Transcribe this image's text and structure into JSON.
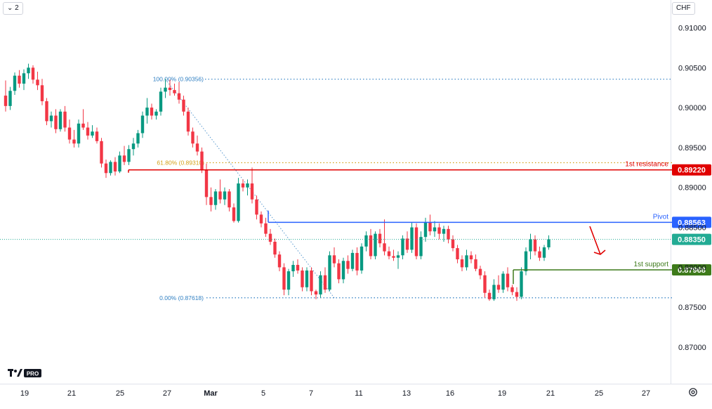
{
  "toolbar": {
    "interval_label": "2",
    "currency_label": "CHF"
  },
  "branding": {
    "logo_text": "TV PRO"
  },
  "colors": {
    "up": "#089981",
    "down": "#f23645",
    "resistance": "#e00000",
    "pivot": "#2962ff",
    "support": "#3d7a1a",
    "fib": "#2f7fc2",
    "fib618": "#d4a017",
    "last": "#22ab94"
  },
  "chart_data": {
    "type": "candlestick",
    "title": "",
    "y_axis": {
      "range": [
        0.8655,
        0.9135
      ],
      "ticks": [
        "0.91000",
        "0.90500",
        "0.90000",
        "0.89500",
        "0.89000",
        "0.88500",
        "0.88000",
        "0.87500",
        "0.87000"
      ]
    },
    "x_axis": {
      "labels": [
        "19",
        "21",
        "25",
        "27",
        "Mar",
        "5",
        "7",
        "11",
        "13",
        "16",
        "19",
        "21",
        "25",
        "27"
      ]
    },
    "levels": [
      {
        "id": "resistance",
        "label": "1st resistance",
        "value": 0.8922,
        "value_text": "0.89220"
      },
      {
        "id": "pivot",
        "label": "Pivot",
        "value": 0.88563,
        "value_text": "0.88563"
      },
      {
        "id": "support",
        "label": "1st support",
        "value": 0.87968,
        "value_text": "0.87968"
      }
    ],
    "last_price": {
      "value": 0.8835,
      "value_text": "0.88350"
    },
    "fib": [
      {
        "label": "100.00% (0.90356)",
        "value": 0.90356
      },
      {
        "label": "61.80% (0.89310)",
        "value": 0.8931
      },
      {
        "label": "0.00% (0.87618)",
        "value": 0.87618
      }
    ],
    "candles": [
      [
        0.9015,
        0.9034,
        0.8995,
        0.9002
      ],
      [
        0.9002,
        0.9026,
        0.8997,
        0.9021
      ],
      [
        0.9021,
        0.9044,
        0.9016,
        0.904
      ],
      [
        0.904,
        0.9047,
        0.9025,
        0.903
      ],
      [
        0.903,
        0.9048,
        0.9022,
        0.9043
      ],
      [
        0.9043,
        0.9055,
        0.9036,
        0.905
      ],
      [
        0.905,
        0.9053,
        0.903,
        0.9035
      ],
      [
        0.9035,
        0.9045,
        0.9022,
        0.9028
      ],
      [
        0.9028,
        0.9036,
        0.9003,
        0.9008
      ],
      [
        0.9008,
        0.9012,
        0.8978,
        0.8983
      ],
      [
        0.8983,
        0.8995,
        0.8975,
        0.899
      ],
      [
        0.899,
        0.8998,
        0.8968,
        0.8973
      ],
      [
        0.8973,
        0.8998,
        0.897,
        0.8995
      ],
      [
        0.8995,
        0.9002,
        0.897,
        0.8975
      ],
      [
        0.8975,
        0.8985,
        0.8955,
        0.896
      ],
      [
        0.896,
        0.8972,
        0.895,
        0.8955
      ],
      [
        0.8955,
        0.8985,
        0.895,
        0.898
      ],
      [
        0.898,
        0.8998,
        0.8972,
        0.8975
      ],
      [
        0.8975,
        0.8982,
        0.896,
        0.8965
      ],
      [
        0.8965,
        0.8978,
        0.8962,
        0.897
      ],
      [
        0.897,
        0.8975,
        0.8955,
        0.8958
      ],
      [
        0.8958,
        0.8962,
        0.8925,
        0.893
      ],
      [
        0.893,
        0.8935,
        0.8912,
        0.8918
      ],
      [
        0.8918,
        0.8934,
        0.8915,
        0.8932
      ],
      [
        0.8932,
        0.8938,
        0.8915,
        0.892
      ],
      [
        0.892,
        0.8945,
        0.8918,
        0.894
      ],
      [
        0.894,
        0.8952,
        0.8928,
        0.8932
      ],
      [
        0.8932,
        0.8953,
        0.8928,
        0.8948
      ],
      [
        0.8948,
        0.8962,
        0.894,
        0.8955
      ],
      [
        0.8955,
        0.8972,
        0.895,
        0.8968
      ],
      [
        0.8968,
        0.8995,
        0.8962,
        0.899
      ],
      [
        0.899,
        0.9012,
        0.898,
        0.9
      ],
      [
        0.9,
        0.9005,
        0.8985,
        0.899
      ],
      [
        0.899,
        0.8998,
        0.8985,
        0.8995
      ],
      [
        0.8995,
        0.9025,
        0.899,
        0.902
      ],
      [
        0.902,
        0.9036,
        0.9012,
        0.9025
      ],
      [
        0.9025,
        0.9035,
        0.9015,
        0.9022
      ],
      [
        0.9022,
        0.903,
        0.9015,
        0.9018
      ],
      [
        0.9018,
        0.9032,
        0.9005,
        0.901
      ],
      [
        0.901,
        0.9015,
        0.899,
        0.8995
      ],
      [
        0.8995,
        0.9,
        0.8965,
        0.897
      ],
      [
        0.897,
        0.8975,
        0.895,
        0.8955
      ],
      [
        0.8955,
        0.8965,
        0.894,
        0.8945
      ],
      [
        0.8945,
        0.895,
        0.8918,
        0.8922
      ],
      [
        0.8922,
        0.893,
        0.8878,
        0.8888
      ],
      [
        0.8888,
        0.89,
        0.887,
        0.8878
      ],
      [
        0.8878,
        0.8898,
        0.8872,
        0.8895
      ],
      [
        0.8895,
        0.891,
        0.888,
        0.8885
      ],
      [
        0.8885,
        0.89,
        0.8878,
        0.8895
      ],
      [
        0.8895,
        0.8898,
        0.887,
        0.8875
      ],
      [
        0.8875,
        0.888,
        0.8856,
        0.8858
      ],
      [
        0.8858,
        0.8912,
        0.8856,
        0.8905
      ],
      [
        0.8905,
        0.891,
        0.8895,
        0.89
      ],
      [
        0.89,
        0.891,
        0.889,
        0.8905
      ],
      [
        0.8905,
        0.8925,
        0.888,
        0.8885
      ],
      [
        0.8885,
        0.889,
        0.886,
        0.8866
      ],
      [
        0.8866,
        0.887,
        0.885,
        0.8855
      ],
      [
        0.8855,
        0.8862,
        0.8838,
        0.8842
      ],
      [
        0.8842,
        0.8848,
        0.8828,
        0.8832
      ],
      [
        0.8832,
        0.8836,
        0.8812,
        0.8816
      ],
      [
        0.8816,
        0.882,
        0.8795,
        0.88
      ],
      [
        0.88,
        0.8805,
        0.8765,
        0.8772
      ],
      [
        0.8772,
        0.8798,
        0.8765,
        0.8795
      ],
      [
        0.8795,
        0.8808,
        0.8788,
        0.8803
      ],
      [
        0.8803,
        0.881,
        0.8792,
        0.8796
      ],
      [
        0.8796,
        0.88,
        0.877,
        0.8775
      ],
      [
        0.8775,
        0.88,
        0.877,
        0.8796
      ],
      [
        0.8796,
        0.88,
        0.8765,
        0.877
      ],
      [
        0.877,
        0.8772,
        0.876,
        0.8766
      ],
      [
        0.8766,
        0.8795,
        0.8762,
        0.879
      ],
      [
        0.879,
        0.88,
        0.8768,
        0.8772
      ],
      [
        0.8772,
        0.882,
        0.877,
        0.8815
      ],
      [
        0.8815,
        0.8825,
        0.88,
        0.8805
      ],
      [
        0.8805,
        0.881,
        0.878,
        0.8785
      ],
      [
        0.8785,
        0.8812,
        0.878,
        0.8808
      ],
      [
        0.8808,
        0.8815,
        0.8792,
        0.8798
      ],
      [
        0.8798,
        0.8822,
        0.8795,
        0.8818
      ],
      [
        0.8818,
        0.8825,
        0.879,
        0.8796
      ],
      [
        0.8796,
        0.883,
        0.8792,
        0.8826
      ],
      [
        0.8826,
        0.8845,
        0.882,
        0.884
      ],
      [
        0.884,
        0.8848,
        0.881,
        0.8814
      ],
      [
        0.8814,
        0.8845,
        0.881,
        0.8842
      ],
      [
        0.8842,
        0.8848,
        0.8825,
        0.883
      ],
      [
        0.883,
        0.886,
        0.8815,
        0.882
      ],
      [
        0.882,
        0.8826,
        0.881,
        0.8814
      ],
      [
        0.8814,
        0.8822,
        0.8808,
        0.8812
      ],
      [
        0.8812,
        0.882,
        0.8798,
        0.8815
      ],
      [
        0.8815,
        0.884,
        0.881,
        0.8836
      ],
      [
        0.8836,
        0.8845,
        0.8818,
        0.8822
      ],
      [
        0.8822,
        0.8856,
        0.8818,
        0.885
      ],
      [
        0.885,
        0.8855,
        0.881,
        0.8814
      ],
      [
        0.8814,
        0.8845,
        0.881,
        0.8838
      ],
      [
        0.8838,
        0.8862,
        0.8832,
        0.8856
      ],
      [
        0.8856,
        0.8866,
        0.884,
        0.8845
      ],
      [
        0.8845,
        0.8858,
        0.8838,
        0.885
      ],
      [
        0.885,
        0.8855,
        0.8835,
        0.8842
      ],
      [
        0.8842,
        0.8852,
        0.8832,
        0.8848
      ],
      [
        0.8848,
        0.8852,
        0.883,
        0.8835
      ],
      [
        0.8835,
        0.884,
        0.882,
        0.8824
      ],
      [
        0.8824,
        0.8828,
        0.8805,
        0.881
      ],
      [
        0.881,
        0.8815,
        0.8795,
        0.88
      ],
      [
        0.88,
        0.8822,
        0.8796,
        0.8815
      ],
      [
        0.8815,
        0.882,
        0.8805,
        0.881
      ],
      [
        0.881,
        0.8816,
        0.8795,
        0.8798
      ],
      [
        0.8798,
        0.8802,
        0.8785,
        0.879
      ],
      [
        0.879,
        0.8795,
        0.8762,
        0.8768
      ],
      [
        0.8768,
        0.8772,
        0.8758,
        0.876
      ],
      [
        0.876,
        0.8785,
        0.8758,
        0.8778
      ],
      [
        0.8778,
        0.879,
        0.8768,
        0.8772
      ],
      [
        0.8772,
        0.8795,
        0.8768,
        0.8792
      ],
      [
        0.8792,
        0.88,
        0.877,
        0.8775
      ],
      [
        0.8775,
        0.8778,
        0.8765,
        0.8769
      ],
      [
        0.8769,
        0.8775,
        0.8758,
        0.8763
      ],
      [
        0.8763,
        0.88,
        0.876,
        0.8795
      ],
      [
        0.8795,
        0.8825,
        0.879,
        0.882
      ],
      [
        0.882,
        0.8842,
        0.881,
        0.8835
      ],
      [
        0.8835,
        0.884,
        0.8815,
        0.882
      ],
      [
        0.882,
        0.8826,
        0.8808,
        0.8812
      ],
      [
        0.8812,
        0.8828,
        0.8808,
        0.8825
      ],
      [
        0.8825,
        0.884,
        0.8822,
        0.8835
      ]
    ]
  }
}
